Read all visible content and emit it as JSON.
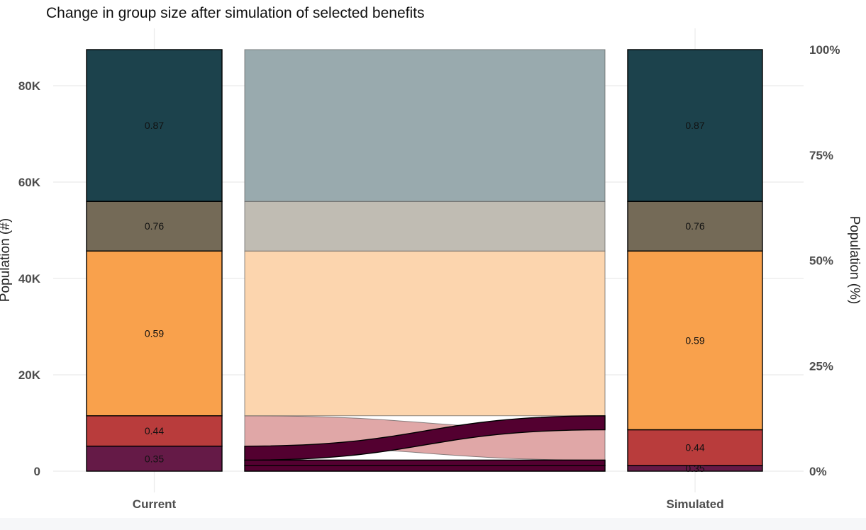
{
  "chart_data": {
    "type": "alluvial",
    "title": "Change in group size after simulation of selected benefits",
    "ylabel_left": "Population (#)",
    "ylabel_right": "Population (%)",
    "ylim": [
      0,
      87500
    ],
    "y_ticks": [
      {
        "value": 0,
        "label": "0"
      },
      {
        "value": 20000,
        "label": "20K"
      },
      {
        "value": 40000,
        "label": "40K"
      },
      {
        "value": 60000,
        "label": "60K"
      },
      {
        "value": 80000,
        "label": "80K"
      }
    ],
    "pct_ticks": [
      {
        "value": 0,
        "label": "0%"
      },
      {
        "value": 0.25,
        "label": "25%"
      },
      {
        "value": 0.5,
        "label": "50%"
      },
      {
        "value": 0.75,
        "label": "75%"
      },
      {
        "value": 1,
        "label": "100%"
      }
    ],
    "categories": [
      "Current",
      "Simulated"
    ],
    "groups": [
      {
        "label": "0.35",
        "color": "#651a47",
        "current": 5200,
        "simulated": 1200
      },
      {
        "label": "0.44",
        "color": "#b93c3c",
        "current": 6300,
        "simulated": 7400
      },
      {
        "label": "0.59",
        "color": "#f9a14c",
        "current": 34200,
        "simulated": 37100
      },
      {
        "label": "0.76",
        "color": "#746a57",
        "current": 10300,
        "simulated": 10300
      },
      {
        "label": "0.87",
        "color": "#1c424c",
        "current": 31500,
        "simulated": 31500
      }
    ],
    "flows": [
      {
        "from": "0.35",
        "to": "0.35",
        "value": 1200
      },
      {
        "from": "0.35",
        "to": "0.44",
        "value": 1100
      },
      {
        "from": "0.35",
        "to": "0.59",
        "value": 2900
      },
      {
        "from": "0.44",
        "to": "0.44",
        "value": 6300
      },
      {
        "from": "0.59",
        "to": "0.59",
        "value": 34200
      },
      {
        "from": "0.76",
        "to": "0.76",
        "value": 10300
      },
      {
        "from": "0.87",
        "to": "0.87",
        "value": 31500
      }
    ],
    "grid": true
  }
}
